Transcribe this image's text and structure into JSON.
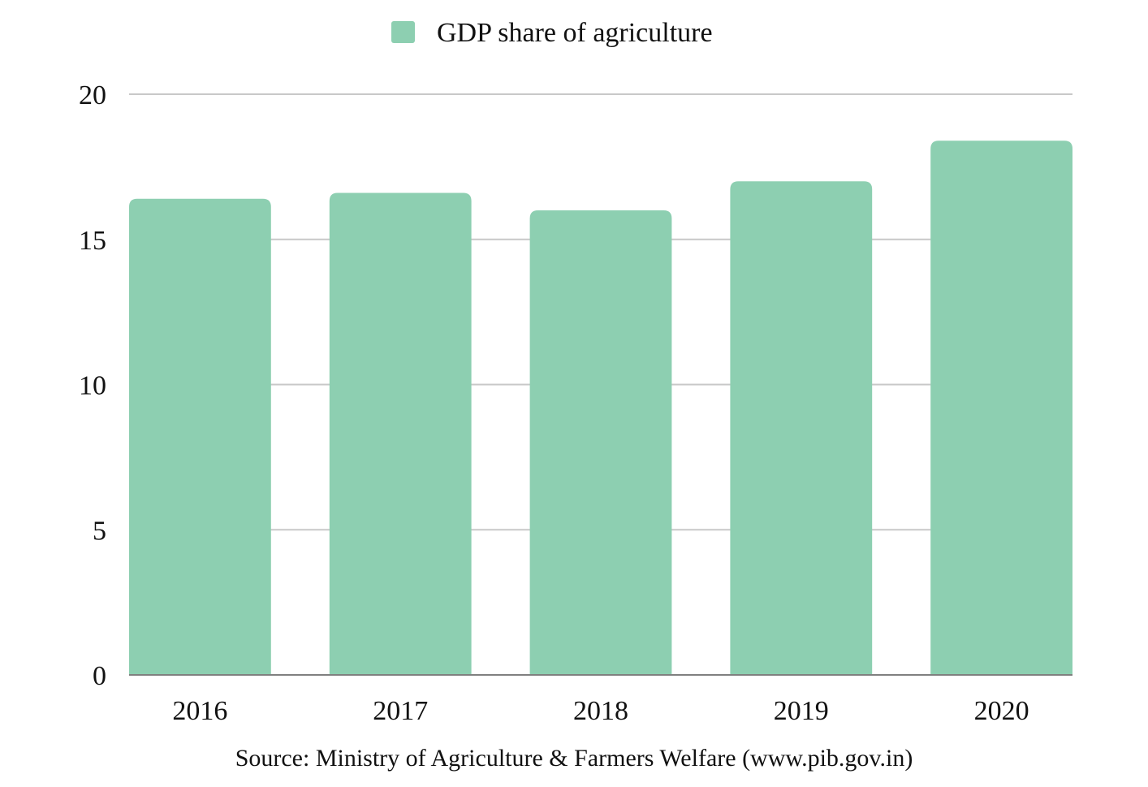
{
  "chart_data": {
    "type": "bar",
    "categories": [
      "2016",
      "2017",
      "2018",
      "2019",
      "2020"
    ],
    "series": [
      {
        "name": "GDP share of agriculture",
        "values": [
          16.4,
          16.6,
          16.0,
          17.0,
          18.4
        ]
      }
    ],
    "title": "",
    "xlabel": "",
    "ylabel": "",
    "ylim": [
      0,
      20
    ],
    "yticks": [
      0,
      5,
      10,
      15,
      20
    ],
    "ytick_labels": [
      "0",
      "5",
      "10",
      "15",
      "20"
    ],
    "grid": true,
    "legend_position": "top-center",
    "source": "Source: Ministry of Agriculture & Farmers Welfare (www.pib.gov.in)"
  },
  "colors": {
    "bar": "#8dcfb1",
    "grid": "#c8c8c8",
    "baseline": "#808080",
    "text": "#111111"
  }
}
